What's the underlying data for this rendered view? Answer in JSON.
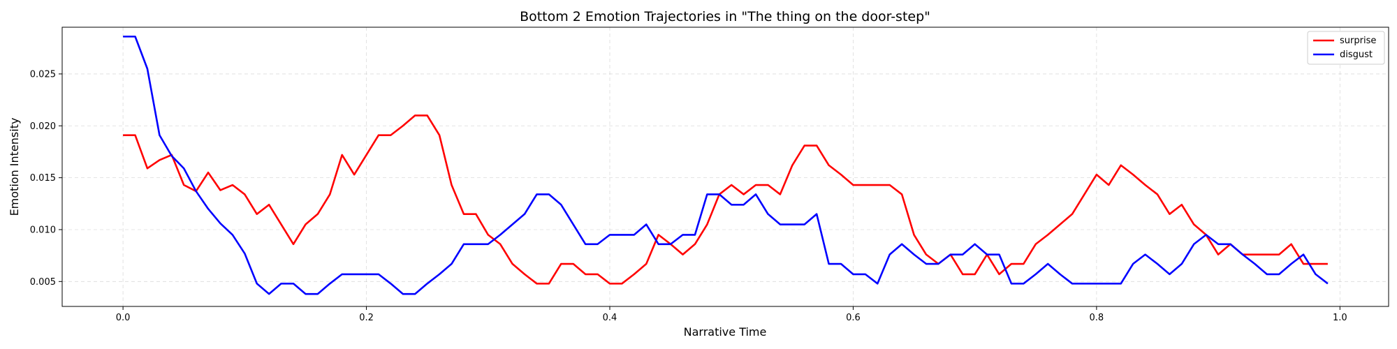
{
  "chart_data": {
    "type": "line",
    "title": "Bottom 2 Emotion Trajectories in \"The thing on the door-step\"",
    "xlabel": "Narrative Time",
    "ylabel": "Emotion Intensity",
    "xlim": [
      -0.05,
      1.04
    ],
    "ylim": [
      0.0026,
      0.0295
    ],
    "xticks": [
      "0.0",
      "0.2",
      "0.4",
      "0.6",
      "0.8",
      "1.0"
    ],
    "yticks": [
      "0.005",
      "0.010",
      "0.015",
      "0.020",
      "0.025"
    ],
    "grid": true,
    "legend_position": "top-right",
    "x": [
      0.0,
      0.01,
      0.02,
      0.03,
      0.04,
      0.05,
      0.06,
      0.07,
      0.08,
      0.09,
      0.1,
      0.11,
      0.12,
      0.13,
      0.14,
      0.15,
      0.16,
      0.17,
      0.18,
      0.19,
      0.2,
      0.21,
      0.22,
      0.23,
      0.24,
      0.25,
      0.26,
      0.27,
      0.28,
      0.29,
      0.3,
      0.31,
      0.32,
      0.33,
      0.34,
      0.35,
      0.36,
      0.37,
      0.38,
      0.39,
      0.4,
      0.41,
      0.42,
      0.43,
      0.44,
      0.45,
      0.46,
      0.47,
      0.48,
      0.49,
      0.5,
      0.51,
      0.52,
      0.53,
      0.54,
      0.55,
      0.56,
      0.57,
      0.58,
      0.59,
      0.6,
      0.61,
      0.62,
      0.63,
      0.64,
      0.65,
      0.66,
      0.67,
      0.68,
      0.69,
      0.7,
      0.71,
      0.72,
      0.73,
      0.74,
      0.75,
      0.76,
      0.77,
      0.78,
      0.79,
      0.8,
      0.81,
      0.82,
      0.83,
      0.84,
      0.85,
      0.86,
      0.87,
      0.88,
      0.89,
      0.9,
      0.91,
      0.92,
      0.93,
      0.94,
      0.95,
      0.96,
      0.97,
      0.98,
      0.99
    ],
    "series": [
      {
        "name": "surprise",
        "color": "#ff0000",
        "values": [
          0.0191,
          0.0191,
          0.0159,
          0.0167,
          0.0172,
          0.0143,
          0.0137,
          0.0155,
          0.0138,
          0.0143,
          0.0134,
          0.0115,
          0.0124,
          0.0105,
          0.0086,
          0.0105,
          0.0115,
          0.0134,
          0.0172,
          0.0153,
          0.0172,
          0.0191,
          0.0191,
          0.02,
          0.021,
          0.021,
          0.0191,
          0.0143,
          0.0115,
          0.0115,
          0.0095,
          0.0086,
          0.0067,
          0.0057,
          0.0048,
          0.0048,
          0.0067,
          0.0067,
          0.0057,
          0.0057,
          0.0048,
          0.0048,
          0.0057,
          0.0067,
          0.0095,
          0.0086,
          0.0076,
          0.0086,
          0.0105,
          0.0134,
          0.0143,
          0.0134,
          0.0143,
          0.0143,
          0.0134,
          0.0162,
          0.0181,
          0.0181,
          0.0162,
          0.0153,
          0.0143,
          0.0143,
          0.0143,
          0.0143,
          0.0134,
          0.0095,
          0.0076,
          0.0067,
          0.0076,
          0.0057,
          0.0057,
          0.0076,
          0.0057,
          0.0067,
          0.0067,
          0.0086,
          0.0095,
          0.0105,
          0.0115,
          0.0134,
          0.0153,
          0.0143,
          0.0162,
          0.0153,
          0.0143,
          0.0134,
          0.0115,
          0.0124,
          0.0105,
          0.0095,
          0.0076,
          0.0086,
          0.0076,
          0.0076,
          0.0076,
          0.0076,
          0.0086,
          0.0067,
          0.0067,
          0.0067
        ]
      },
      {
        "name": "disgust",
        "color": "#0000ff",
        "values": [
          0.0286,
          0.0286,
          0.0255,
          0.0191,
          0.0171,
          0.0159,
          0.0137,
          0.012,
          0.0106,
          0.0095,
          0.0077,
          0.0048,
          0.0038,
          0.0048,
          0.0048,
          0.0038,
          0.0038,
          0.0048,
          0.0057,
          0.0057,
          0.0057,
          0.0057,
          0.0048,
          0.0038,
          0.0038,
          0.0048,
          0.0057,
          0.0067,
          0.0086,
          0.0086,
          0.0086,
          0.0095,
          0.0105,
          0.0115,
          0.0134,
          0.0134,
          0.0124,
          0.0105,
          0.0086,
          0.0086,
          0.0095,
          0.0095,
          0.0095,
          0.0105,
          0.0086,
          0.0086,
          0.0095,
          0.0095,
          0.0134,
          0.0134,
          0.0124,
          0.0124,
          0.0134,
          0.0115,
          0.0105,
          0.0105,
          0.0105,
          0.0115,
          0.0067,
          0.0067,
          0.0057,
          0.0057,
          0.0048,
          0.0076,
          0.0086,
          0.0076,
          0.0067,
          0.0067,
          0.0076,
          0.0076,
          0.0086,
          0.0076,
          0.0076,
          0.0048,
          0.0048,
          0.0057,
          0.0067,
          0.0057,
          0.0048,
          0.0048,
          0.0048,
          0.0048,
          0.0048,
          0.0067,
          0.0076,
          0.0067,
          0.0057,
          0.0067,
          0.0086,
          0.0095,
          0.0086,
          0.0086,
          0.0076,
          0.0067,
          0.0057,
          0.0057,
          0.0067,
          0.0076,
          0.0057,
          0.0048
        ]
      }
    ]
  }
}
